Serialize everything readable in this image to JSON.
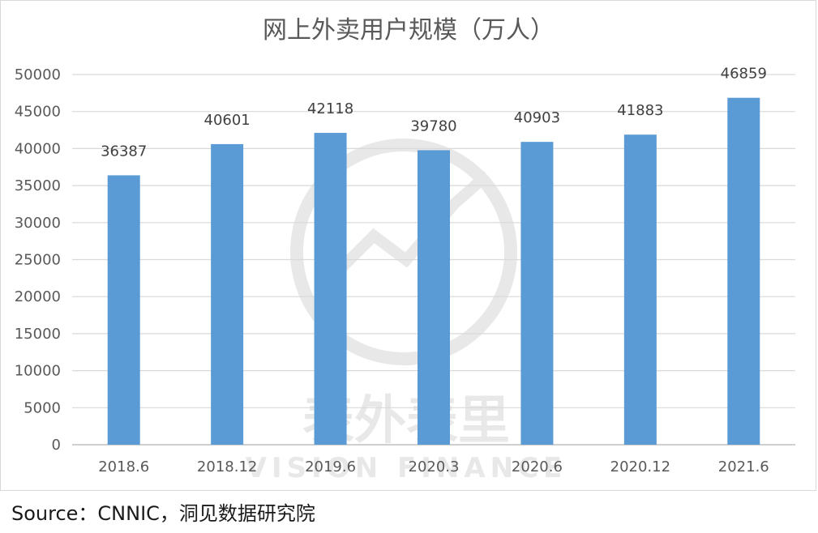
{
  "chart_data": {
    "type": "bar",
    "title": "网上外卖用户规模（万人）",
    "categories": [
      "2018.6",
      "2018.12",
      "2019.6",
      "2020.3",
      "2020.6",
      "2020.12",
      "2021.6"
    ],
    "values": [
      36387,
      40601,
      42118,
      39780,
      40903,
      41883,
      46859
    ],
    "ylim": [
      0,
      50000
    ],
    "yticks": [
      0,
      5000,
      10000,
      15000,
      20000,
      25000,
      30000,
      35000,
      40000,
      45000,
      50000
    ],
    "xlabel": "",
    "ylabel": "",
    "grid": true,
    "bar_color": "#5b9bd5",
    "data_labels": true
  },
  "watermark": {
    "text_cn": "表外表里",
    "text_en": "VISION FINANCE"
  },
  "source": "Source：CNNIC，洞见数据研究院"
}
